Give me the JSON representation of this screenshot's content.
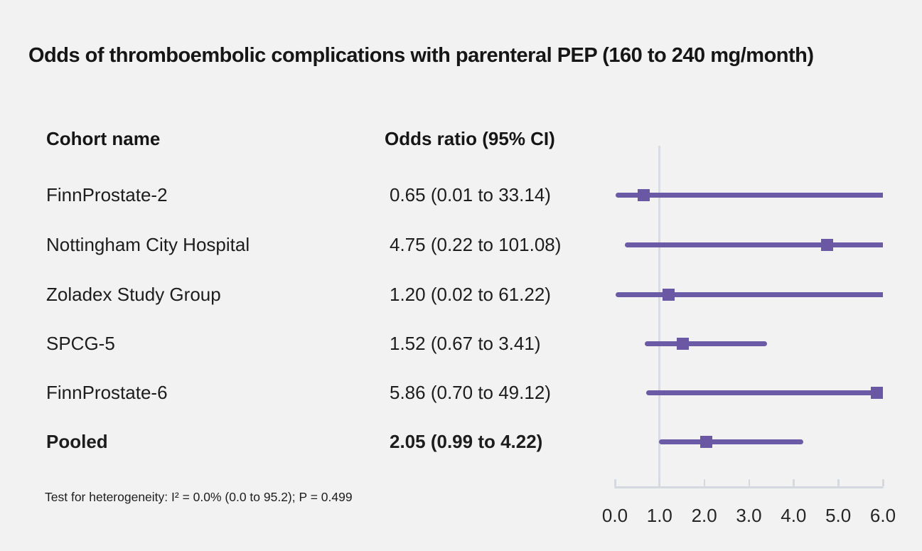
{
  "chart_data": {
    "type": "forest",
    "title": "Odds of thromboembolic complications with parenteral PEP (160 to 240 mg/month)",
    "columns": {
      "cohort": "Cohort name",
      "odds_ratio": "Odds ratio (95% CI)"
    },
    "rows": [
      {
        "cohort": "FinnProstate-2",
        "or_ci_label": "0.65 (0.01 to 33.14)",
        "or": 0.65,
        "ci_low": 0.01,
        "ci_high": 33.14,
        "bold": false
      },
      {
        "cohort": "Nottingham City Hospital",
        "or_ci_label": "4.75 (0.22 to 101.08)",
        "or": 4.75,
        "ci_low": 0.22,
        "ci_high": 101.08,
        "bold": false
      },
      {
        "cohort": "Zoladex Study Group",
        "or_ci_label": "1.20 (0.02 to 61.22)",
        "or": 1.2,
        "ci_low": 0.02,
        "ci_high": 61.22,
        "bold": false
      },
      {
        "cohort": "SPCG-5",
        "or_ci_label": "1.52 (0.67 to 3.41)",
        "or": 1.52,
        "ci_low": 0.67,
        "ci_high": 3.41,
        "bold": false
      },
      {
        "cohort": "FinnProstate-6",
        "or_ci_label": "5.86 (0.70 to 49.12)",
        "or": 5.86,
        "ci_low": 0.7,
        "ci_high": 49.12,
        "bold": false
      },
      {
        "cohort": "Pooled",
        "or_ci_label": "2.05 (0.99 to 4.22)",
        "or": 2.05,
        "ci_low": 0.99,
        "ci_high": 4.22,
        "bold": true
      }
    ],
    "footnote": "Test for heterogeneity: I² = 0.0% (0.0 to 95.2); P = 0.499",
    "axis": {
      "min": 0,
      "max": 6,
      "tick_values": [
        0,
        1,
        2,
        3,
        4,
        5,
        6
      ],
      "tick_labels": [
        "0.0",
        "1.0",
        "2.0",
        "3.0",
        "4.0",
        "5.0",
        "6.0"
      ],
      "reference_line": 1.0
    },
    "colors": {
      "marker": "#6a58a4",
      "ci_line": "#6b5aa5",
      "axis_line": "#d4d9e0",
      "reference_line": "#d8dce3",
      "background": "#f2f2f2",
      "text": "#1d1d1d"
    }
  }
}
